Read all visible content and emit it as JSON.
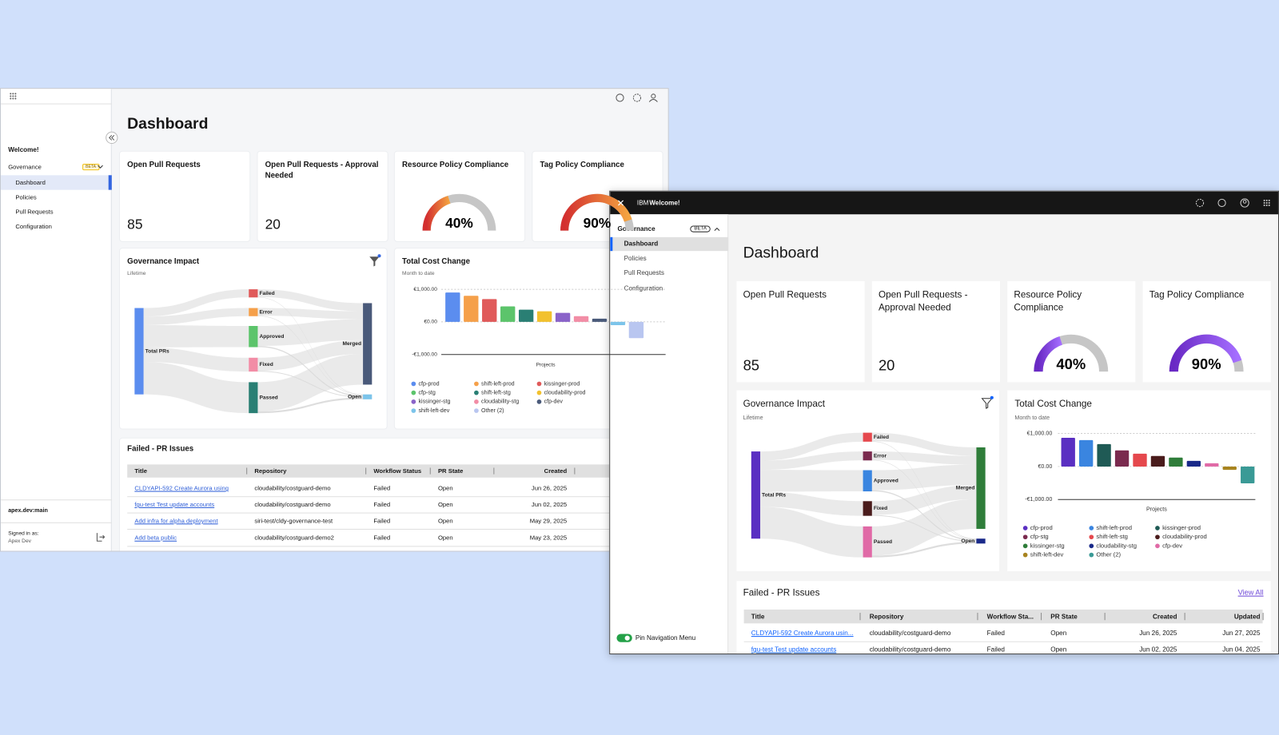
{
  "back": {
    "nav": {
      "welcome": "Welcome!",
      "section": "Governance",
      "badge": "BETA",
      "items": [
        "Dashboard",
        "Policies",
        "Pull Requests",
        "Configuration"
      ],
      "env": "apex.dev:main",
      "signed_in_label": "Signed in as:",
      "user": "Apex Dev"
    },
    "title": "Dashboard",
    "cards": [
      {
        "title": "Open Pull Requests",
        "value": 85
      },
      {
        "title": "Open Pull Requests - Approval Needed",
        "value": 20
      },
      {
        "title": "Resource Policy Compliance",
        "value": 40,
        "value_label": "40%"
      },
      {
        "title": "Tag Policy Compliance",
        "value": 90,
        "value_label": "90%"
      }
    ],
    "impact": {
      "title": "Governance Impact",
      "subtitle": "Lifetime",
      "nodes": [
        "Total PRs",
        "Failed",
        "Error",
        "Approved",
        "Fixed",
        "Passed",
        "Merged",
        "Open"
      ]
    },
    "table": {
      "title": "Failed - PR Issues",
      "columns": [
        "Title",
        "Repository",
        "Workflow Status",
        "PR State",
        "Created"
      ],
      "rows": [
        [
          "CLDYAPI-592 Create Aurora using",
          "cloudability/costguard-demo",
          "Failed",
          "Open",
          "Jun 26, 2025"
        ],
        [
          "fgu-test Test update accounts",
          "cloudability/costguard-demo",
          "Failed",
          "Open",
          "Jun 02, 2025"
        ],
        [
          "Add infra for alpha deployment",
          "siri-test/cldy-governance-test",
          "Failed",
          "Open",
          "May 29, 2025"
        ],
        [
          "Add beta public",
          "cloudability/costguard-demo2",
          "Failed",
          "Open",
          "May 23, 2025"
        ]
      ]
    }
  },
  "front": {
    "header": {
      "brand": "IBM",
      "welcome": "Welcome!"
    },
    "nav": {
      "section": "Governance",
      "badge": "BETA",
      "items": [
        "Dashboard",
        "Policies",
        "Pull Requests",
        "Configuration"
      ],
      "pin": "Pin Navigation Menu"
    },
    "title": "Dashboard",
    "cards": [
      {
        "title": "Open Pull Requests",
        "value": 85
      },
      {
        "title": "Open Pull Requests - Approval Needed",
        "value": 20
      },
      {
        "title": "Resource Policy Compliance",
        "value": 40,
        "value_label": "40%"
      },
      {
        "title": "Tag Policy Compliance",
        "value": 90,
        "value_label": "90%"
      }
    ],
    "impact": {
      "title": "Governance Impact",
      "subtitle": "Lifetime",
      "nodes": [
        "Total PRs",
        "Failed",
        "Error",
        "Approved",
        "Fixed",
        "Passed",
        "Merged",
        "Open"
      ]
    },
    "table": {
      "title": "Failed - PR Issues",
      "view_all": "View All",
      "columns": [
        "Title",
        "Repository",
        "Workflow Sta...",
        "PR State",
        "Created",
        "Updated"
      ],
      "rows": [
        [
          "CLDYAPI-592 Create Aurora usin...",
          "cloudability/costguard-demo",
          "Failed",
          "Open",
          "Jun 26, 2025",
          "Jun 27, 2025"
        ],
        [
          "fgu-test Test update accounts",
          "cloudability/costguard-demo",
          "Failed",
          "Open",
          "Jun 02, 2025",
          "Jun 04, 2025"
        ]
      ]
    }
  },
  "chart_data": [
    {
      "type": "bar",
      "title": "Total Cost Change",
      "subtitle": "Month to date",
      "x_label": "Projects",
      "categories": [
        "cfp-prod",
        "shift-left-prod",
        "kissinger-prod",
        "cfp-stg",
        "shift-left-stg",
        "cloudability-prod",
        "kissinger-stg",
        "cloudability-stg",
        "cfp-dev",
        "shift-left-dev",
        "Other (2)"
      ],
      "values": [
        900,
        800,
        700,
        475,
        375,
        325,
        275,
        175,
        100,
        -100,
        -500
      ],
      "colors": [
        "#5b8def",
        "#f5a04a",
        "#e05a5a",
        "#5cc46b",
        "#2a7f74",
        "#f2c12e",
        "#8a63c9",
        "#f28da6",
        "#4a5a7a",
        "#7cc4ea",
        "#b9c6f0"
      ],
      "ylim": [
        -1000,
        1000
      ],
      "yticks": [
        {
          "value": 1000,
          "label": "€1,000.00"
        },
        {
          "value": 0,
          "label": "€0.00"
        },
        {
          "value": -1000,
          "label": "-€1,000.00"
        }
      ],
      "legend": "bottom"
    },
    {
      "type": "bar",
      "title": "Total Cost Change",
      "subtitle": "Month to date",
      "x_label": "Projects",
      "categories": [
        "cfp-prod",
        "shift-left-prod",
        "kissinger-prod",
        "cfp-stg",
        "shift-left-stg",
        "cloudability-prod",
        "kissinger-stg",
        "cloudability-stg",
        "cfp-dev",
        "shift-left-dev",
        "Other (2)"
      ],
      "values": [
        870,
        800,
        680,
        490,
        390,
        320,
        270,
        170,
        100,
        -100,
        -510
      ],
      "colors": [
        "#5a2fc2",
        "#3a85e0",
        "#1f5a55",
        "#7a2a4e",
        "#e5484d",
        "#4a1c1c",
        "#2f7d3a",
        "#1a2a8a",
        "#e06aa6",
        "#a8841f",
        "#3a9a96"
      ],
      "ylim": [
        -1000,
        1000
      ],
      "yticks": [
        {
          "value": 1000,
          "label": "€1,000.00"
        },
        {
          "value": 0,
          "label": "€0.00"
        },
        {
          "value": -1000,
          "label": "-€1,000.00"
        }
      ],
      "legend": "bottom"
    }
  ]
}
